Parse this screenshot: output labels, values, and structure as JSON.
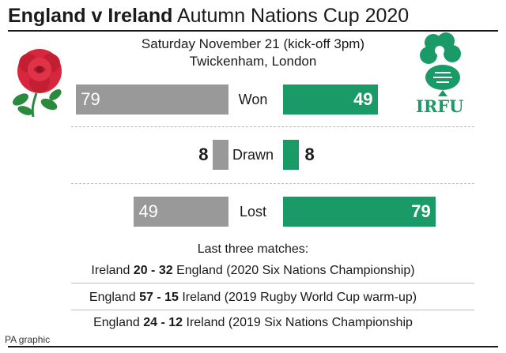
{
  "title": {
    "bold": "England v Ireland",
    "regular": "Autumn Nations Cup 2020"
  },
  "subtitle": {
    "line1": "Saturday November 21 (kick-off 3pm)",
    "line2": "Twickenham, London"
  },
  "logos": {
    "left": "england-rose-emblem",
    "right": "irfu-shamrock-emblem",
    "right_text": "IRFU"
  },
  "colors": {
    "england": "#999999",
    "ireland": "#1a9a67"
  },
  "chart_data": {
    "type": "bar",
    "categories": [
      "Won",
      "Drawn",
      "Lost"
    ],
    "series": [
      {
        "values": [
          79,
          8,
          49
        ]
      },
      {
        "values": [
          49,
          8,
          79
        ]
      }
    ]
  },
  "last_three": {
    "heading": "Last three matches:",
    "matches": [
      {
        "home": "Ireland",
        "score": "20 - 32",
        "away": "England",
        "note": "(2020 Six Nations Championship)"
      },
      {
        "home": "England",
        "score": "57 - 15",
        "away": "Ireland",
        "note": "(2019 Rugby World Cup warm-up)"
      },
      {
        "home": "England",
        "score": "24 - 12",
        "away": "Ireland",
        "note": "(2019 Six Nations Championship"
      }
    ]
  },
  "credit": "PA graphic"
}
